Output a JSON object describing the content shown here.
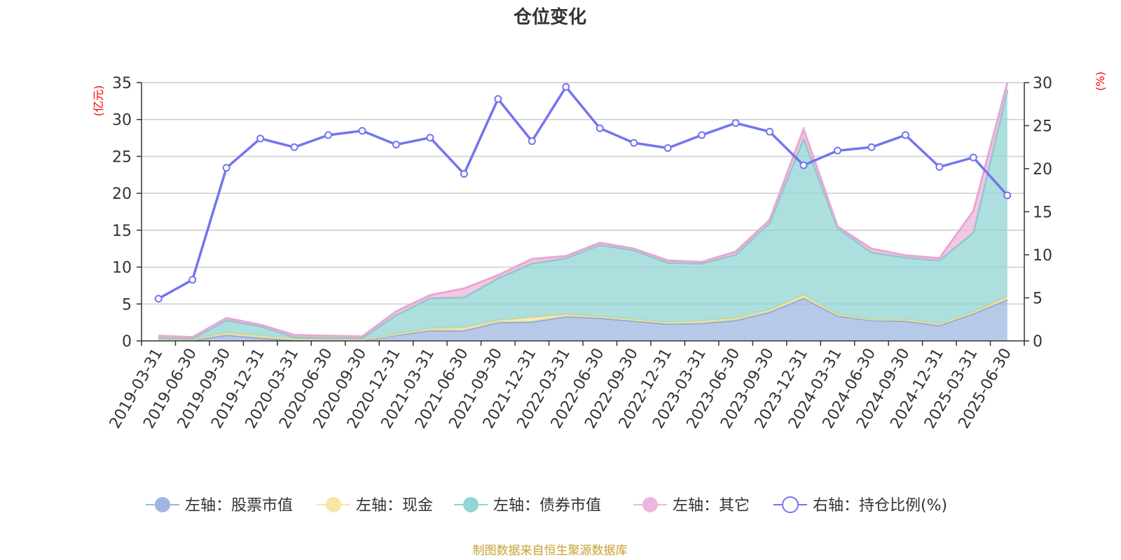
{
  "chart_data": {
    "type": "area",
    "title": "仓位变化",
    "left_axis_unit": "(亿元)",
    "right_axis_unit": "(%)",
    "left_ylim": [
      0,
      35
    ],
    "left_ticks": [
      0,
      5,
      10,
      15,
      20,
      25,
      30,
      35
    ],
    "right_ylim": [
      0,
      30
    ],
    "right_ticks": [
      0,
      5,
      10,
      15,
      20,
      25,
      30
    ],
    "grid": true,
    "legend_position": "bottom",
    "categories": [
      "2019-03-31",
      "2019-06-30",
      "2019-09-30",
      "2019-12-31",
      "2020-03-31",
      "2020-06-30",
      "2020-09-30",
      "2020-12-31",
      "2021-03-31",
      "2021-06-30",
      "2021-09-30",
      "2021-12-31",
      "2022-03-31",
      "2022-06-30",
      "2022-09-30",
      "2022-12-31",
      "2023-03-31",
      "2023-06-30",
      "2023-09-30",
      "2023-12-31",
      "2024-03-31",
      "2024-06-30",
      "2024-09-30",
      "2024-12-31",
      "2025-03-31",
      "2025-06-30"
    ],
    "series": [
      {
        "name": "左轴：股票市值",
        "axis": "left",
        "kind": "stacked-area",
        "color": "#9fb7e0",
        "values": [
          0.1,
          0.1,
          0.8,
          0.4,
          0.1,
          0.1,
          0.1,
          0.8,
          1.4,
          1.4,
          2.5,
          2.6,
          3.3,
          3.1,
          2.7,
          2.3,
          2.4,
          2.8,
          3.9,
          5.8,
          3.4,
          2.8,
          2.7,
          2.1,
          3.7,
          5.6
        ]
      },
      {
        "name": "左轴：现金",
        "axis": "left",
        "kind": "stacked-area",
        "color": "#f6e6a3",
        "values": [
          0.1,
          0.1,
          0.3,
          0.3,
          0.2,
          0.1,
          0.1,
          0.1,
          0.3,
          0.4,
          0.3,
          0.6,
          0.3,
          0.2,
          0.2,
          0.2,
          0.3,
          0.3,
          0.3,
          0.4,
          0.2,
          0.1,
          0.2,
          0.2,
          0.2,
          0.4
        ]
      },
      {
        "name": "左轴：债券市值",
        "axis": "left",
        "kind": "stacked-area",
        "color": "#93d4d4",
        "values": [
          0.2,
          0.1,
          1.7,
          1.3,
          0.2,
          0.2,
          0.2,
          2.6,
          4.1,
          4.1,
          5.7,
          7.3,
          7.6,
          9.7,
          9.4,
          8.1,
          7.8,
          8.6,
          11.8,
          21.2,
          11.7,
          9.1,
          8.4,
          8.6,
          10.8,
          28.0
        ]
      },
      {
        "name": "左轴：其它",
        "axis": "left",
        "kind": "stacked-area",
        "color": "#edb7db",
        "values": [
          0.3,
          0.2,
          0.3,
          0.2,
          0.3,
          0.3,
          0.2,
          0.5,
          0.4,
          1.2,
          0.4,
          0.6,
          0.3,
          0.3,
          0.2,
          0.3,
          0.2,
          0.4,
          0.4,
          1.3,
          0.2,
          0.5,
          0.3,
          0.3,
          2.9,
          1.0
        ]
      },
      {
        "name": "右轴：持仓比例(%)",
        "axis": "right",
        "kind": "line",
        "color": "#7474f0",
        "values": [
          4.9,
          7.1,
          20.1,
          23.5,
          22.5,
          23.9,
          24.4,
          22.8,
          23.6,
          19.4,
          28.1,
          23.2,
          29.5,
          24.7,
          23.0,
          22.4,
          23.9,
          25.3,
          24.3,
          20.4,
          22.1,
          22.5,
          23.9,
          20.2,
          21.3,
          16.9
        ]
      }
    ]
  },
  "footer": {
    "source_text": "制图数据来自恒生聚源数据库",
    "color": "#c8a032"
  }
}
